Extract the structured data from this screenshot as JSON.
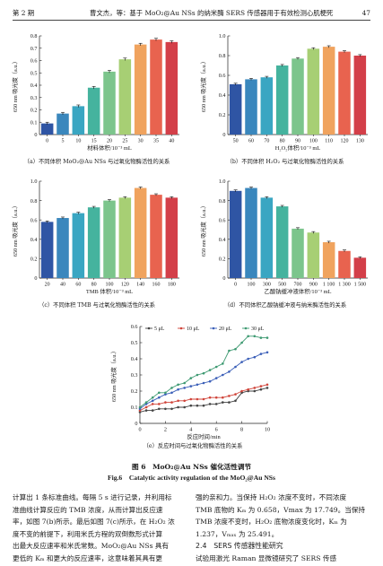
{
  "header": {
    "issue": "第 2 期",
    "running_title": "曹文杰，等：基于 MoO₂@Au NSs 的纳米酶 SERS 传感器用于有效检测心肌梗死",
    "page_number": "47"
  },
  "chart_data": [
    {
      "id": "a",
      "type": "bar",
      "categories": [
        "0",
        "5",
        "10",
        "15",
        "20",
        "25",
        "30",
        "35",
        "40"
      ],
      "values": [
        0.09,
        0.17,
        0.23,
        0.38,
        0.51,
        0.61,
        0.73,
        0.77,
        0.75
      ],
      "errors": [
        0.01,
        0.01,
        0.01,
        0.01,
        0.01,
        0.01,
        0.01,
        0.01,
        0.01
      ],
      "colors": [
        "#2f55a4",
        "#3a87bd",
        "#3aa6c2",
        "#45b39e",
        "#7cc58c",
        "#a7cf74",
        "#f0a35e",
        "#e8634f",
        "#d33f49"
      ],
      "ylabel": "650 nm 吸光度（a.u.）",
      "xlabel": "材料体积/10⁻³ mL",
      "ylim": [
        0,
        0.8
      ],
      "yticks": [
        "0",
        "0.1",
        "0.2",
        "0.3",
        "0.4",
        "0.5",
        "0.6",
        "0.7",
        "0.8"
      ],
      "caption": "（a）不同体积 MoO₂@Au NSs 与过氧化物酶活性的关系"
    },
    {
      "id": "b",
      "type": "bar",
      "categories": [
        "50",
        "60",
        "70",
        "80",
        "90",
        "100",
        "110",
        "120",
        "130"
      ],
      "values": [
        0.51,
        0.56,
        0.58,
        0.7,
        0.77,
        0.87,
        0.89,
        0.84,
        0.8
      ],
      "errors": [
        0.01,
        0.01,
        0.01,
        0.01,
        0.01,
        0.01,
        0.01,
        0.01,
        0.01
      ],
      "colors": [
        "#2f55a4",
        "#3a87bd",
        "#3aa6c2",
        "#45b39e",
        "#7cc58c",
        "#a7cf74",
        "#f0a35e",
        "#e8634f",
        "#d33f49"
      ],
      "ylabel": "650 nm 吸光度（a.u.）",
      "xlabel": "H₂O₂体积/10⁻³ mL",
      "ylim": [
        0,
        1.0
      ],
      "yticks": [
        "0",
        "0.2",
        "0.4",
        "0.6",
        "0.8",
        "1.0"
      ],
      "caption": "（b）不同体积 H₂O₂ 与过氧化物酶活性的关系"
    },
    {
      "id": "c",
      "type": "bar",
      "categories": [
        "20",
        "40",
        "60",
        "80",
        "100",
        "120",
        "140",
        "160",
        "180"
      ],
      "values": [
        0.58,
        0.62,
        0.67,
        0.73,
        0.8,
        0.83,
        0.93,
        0.86,
        0.83
      ],
      "errors": [
        0.01,
        0.01,
        0.01,
        0.01,
        0.01,
        0.01,
        0.01,
        0.01,
        0.01
      ],
      "colors": [
        "#2f55a4",
        "#3a87bd",
        "#3aa6c2",
        "#45b39e",
        "#7cc58c",
        "#a7cf74",
        "#f0a35e",
        "#e8634f",
        "#d33f49"
      ],
      "ylabel": "650 nm 吸光度（a.u.）",
      "xlabel": "TMB 体积/10⁻³ mL",
      "ylim": [
        0,
        1.0
      ],
      "yticks": [
        "0",
        "0.2",
        "0.4",
        "0.6",
        "0.8",
        "1.0"
      ],
      "caption": "（c）不同体积 TMB 与过氧化物酶活性的关系"
    },
    {
      "id": "d",
      "type": "bar",
      "categories": [
        "0",
        "100",
        "300",
        "500",
        "700",
        "900",
        "1 100",
        "1 300",
        "1 500"
      ],
      "values": [
        0.9,
        0.93,
        0.83,
        0.74,
        0.51,
        0.47,
        0.37,
        0.28,
        0.21
      ],
      "errors": [
        0.01,
        0.01,
        0.01,
        0.01,
        0.01,
        0.01,
        0.01,
        0.01,
        0.01
      ],
      "colors": [
        "#2f55a4",
        "#3a87bd",
        "#3aa6c2",
        "#45b39e",
        "#7cc58c",
        "#a7cf74",
        "#f0a35e",
        "#e8634f",
        "#d33f49"
      ],
      "ylabel": "650 nm 吸光度（a.u.）",
      "xlabel": "乙酸钠缓冲液体积/10⁻³ mL",
      "ylim": [
        0,
        1.0
      ],
      "yticks": [
        "0",
        "0.2",
        "0.4",
        "0.6",
        "0.8",
        "1.0"
      ],
      "caption": "（d）不同体积乙酸钠缓冲液与纳米酶活性的关系"
    },
    {
      "id": "e",
      "type": "line",
      "x": [
        0,
        0.5,
        1,
        1.5,
        2,
        2.5,
        3,
        3.5,
        4,
        4.5,
        5,
        5.5,
        6,
        6.5,
        7,
        7.5,
        8,
        8.5,
        9,
        9.5,
        10
      ],
      "series": [
        {
          "name": "5 μL",
          "color": "#444444",
          "values": [
            0.07,
            0.08,
            0.08,
            0.09,
            0.09,
            0.09,
            0.1,
            0.1,
            0.11,
            0.11,
            0.11,
            0.12,
            0.12,
            0.13,
            0.13,
            0.14,
            0.19,
            0.2,
            0.2,
            0.21,
            0.22
          ]
        },
        {
          "name": "10 μL",
          "color": "#d0443a",
          "values": [
            0.08,
            0.1,
            0.12,
            0.12,
            0.13,
            0.13,
            0.14,
            0.14,
            0.15,
            0.15,
            0.15,
            0.16,
            0.16,
            0.16,
            0.17,
            0.18,
            0.2,
            0.21,
            0.22,
            0.23,
            0.24
          ]
        },
        {
          "name": "20 μL",
          "color": "#3b5fb8",
          "values": [
            0.09,
            0.12,
            0.14,
            0.16,
            0.18,
            0.19,
            0.21,
            0.22,
            0.23,
            0.24,
            0.25,
            0.26,
            0.28,
            0.3,
            0.32,
            0.35,
            0.38,
            0.4,
            0.41,
            0.43,
            0.44
          ]
        },
        {
          "name": "30 μL",
          "color": "#3e9a72",
          "values": [
            0.1,
            0.13,
            0.16,
            0.19,
            0.19,
            0.22,
            0.24,
            0.25,
            0.28,
            0.3,
            0.31,
            0.33,
            0.35,
            0.37,
            0.45,
            0.46,
            0.5,
            0.54,
            0.54,
            0.53,
            0.53
          ]
        }
      ],
      "ylabel": "650 nm 吸光度（a.u.）",
      "xlabel": "反应时间/min",
      "xlim": [
        0,
        10
      ],
      "ylim": [
        0,
        0.6
      ],
      "xticks": [
        "0",
        "2",
        "4",
        "6",
        "8",
        "10"
      ],
      "yticks": [
        "0",
        "0.1",
        "0.2",
        "0.3",
        "0.4",
        "0.5",
        "0.6"
      ],
      "legend_position": "top",
      "caption": "（e）反应时间与过氧化物酶活性的关系"
    }
  ],
  "figure": {
    "caption_cn": "图 6　MoO₂@Au NSs 催化活性调节",
    "caption_en": "Fig.6　Catalytic activity regulation of the MoO₂@Au NSs"
  },
  "body": {
    "left": [
      "计算出 1 条标准曲线。每隔 5 s 进行记录，并利用标",
      "准曲线计算反应的 TMB 浓度，从而计算出反应速",
      "率，如图 7(b)所示。最后如图 7(c)所示，在 H₂O₂ 浓",
      "度不变的前提下，利用米氏方程的双倒数形式计算",
      "出最大反应速率和米氏常数。MoO₂@Au NSs 具有",
      "更低的 Kₘ 和更大的反应速率，这意味着其具有更"
    ],
    "right": [
      "强的亲和力。当保持 H₂O₂ 浓度不变时，不同浓度",
      "TMB 底物的 Kₘ 为 0.658，Vmax 为 17.749。当保持",
      "TMB 浓度不变时，H₂O₂ 底物浓度变化时，Kₘ 为",
      "1.237，Vₘₐₓ 为 25.491。"
    ],
    "section_heading": "2.4　SERS 传感器性能研究",
    "right_after_heading": [
      "试验用激光 Raman 显微镜研究了 SERS 传感"
    ]
  }
}
